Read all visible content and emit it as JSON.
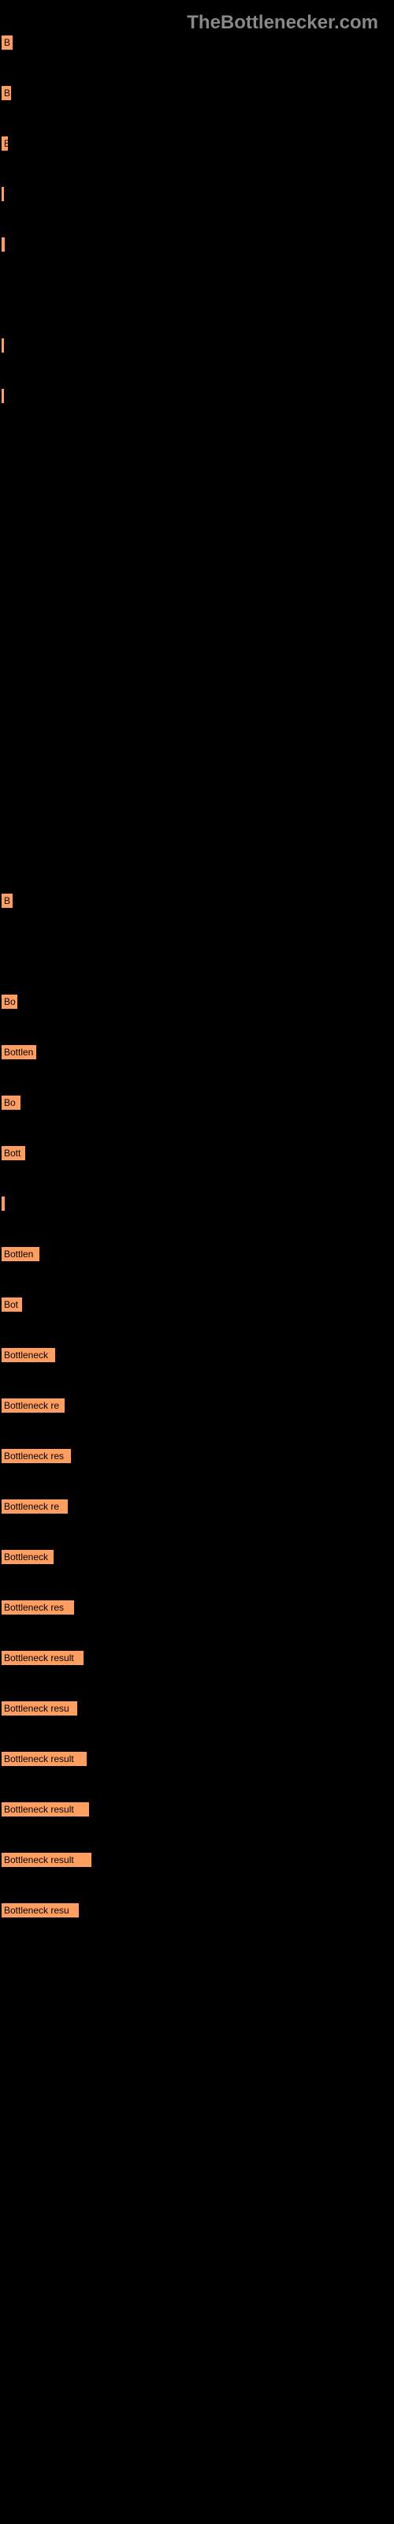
{
  "watermark": "TheBottlenecker.com",
  "chart": {
    "type": "bar",
    "bar_color": "#ff9e5e",
    "background_color": "#000000",
    "text_color": "#000000",
    "watermark_color": "#888888",
    "bars": [
      {
        "label": "B",
        "width": 18
      },
      {
        "label": "B",
        "width": 16
      },
      {
        "label": "B",
        "width": 12
      },
      {
        "label": "",
        "width": 6
      },
      {
        "label": "",
        "width": 8
      },
      {
        "label": "",
        "width": 0
      },
      {
        "label": "",
        "width": 6
      },
      {
        "label": "",
        "width": 6
      },
      {
        "label": "",
        "width": 0
      },
      {
        "label": "",
        "width": 0
      },
      {
        "label": "",
        "width": 0
      },
      {
        "label": "",
        "width": 0
      },
      {
        "label": "",
        "width": 0
      },
      {
        "label": "",
        "width": 0
      },
      {
        "label": "",
        "width": 0
      },
      {
        "label": "",
        "width": 0
      },
      {
        "label": "",
        "width": 0
      },
      {
        "label": "B",
        "width": 18
      },
      {
        "label": "",
        "width": 0
      },
      {
        "label": "Bo",
        "width": 24
      },
      {
        "label": "Bottlen",
        "width": 48
      },
      {
        "label": "Bo",
        "width": 28
      },
      {
        "label": "Bott",
        "width": 34
      },
      {
        "label": "",
        "width": 8
      },
      {
        "label": "Bottlen",
        "width": 52
      },
      {
        "label": "Bot",
        "width": 30
      },
      {
        "label": "Bottleneck",
        "width": 72
      },
      {
        "label": "Bottleneck re",
        "width": 84
      },
      {
        "label": "Bottleneck res",
        "width": 92
      },
      {
        "label": "Bottleneck re",
        "width": 88
      },
      {
        "label": "Bottleneck",
        "width": 70
      },
      {
        "label": "Bottleneck res",
        "width": 96
      },
      {
        "label": "Bottleneck result",
        "width": 108
      },
      {
        "label": "Bottleneck resu",
        "width": 100
      },
      {
        "label": "Bottleneck result",
        "width": 112
      },
      {
        "label": "Bottleneck result",
        "width": 115
      },
      {
        "label": "Bottleneck result",
        "width": 118
      },
      {
        "label": "Bottleneck resu",
        "width": 102
      }
    ]
  }
}
